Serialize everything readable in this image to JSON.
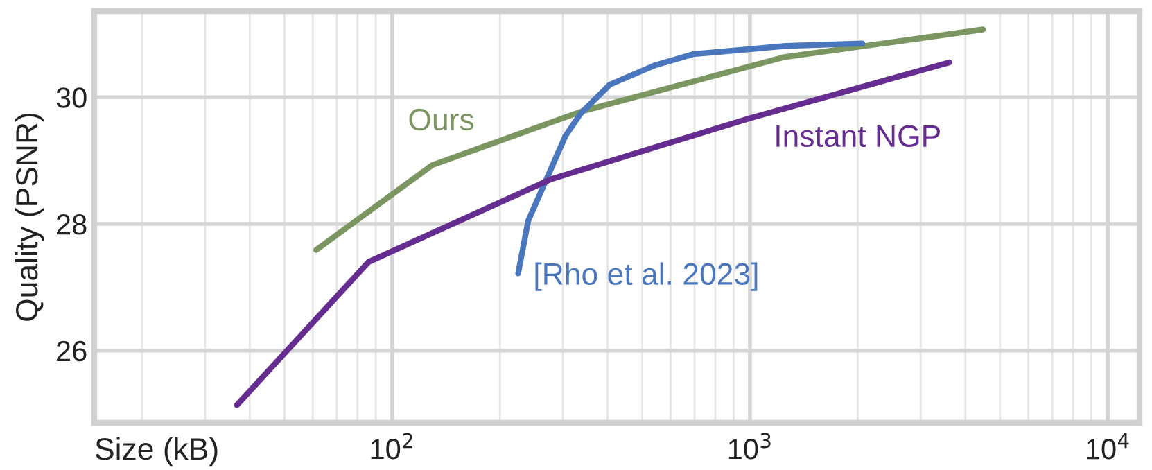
{
  "chart_data": {
    "type": "line",
    "xlabel": "Size (kB)",
    "ylabel": "Quality (PSNR)",
    "log": "x",
    "grid": true,
    "legend": false,
    "marker": "none",
    "line_style": "solid",
    "xlim": [
      14.7,
      12270
    ],
    "ylim": [
      24.86,
      31.36
    ],
    "xticks": [
      {
        "value": 100,
        "label": "10$^{2}$"
      },
      {
        "value": 1000,
        "label": "10$^{3}$"
      },
      {
        "value": 10000,
        "label": "10$^{4}$"
      }
    ],
    "yticks": [
      26,
      28,
      30
    ],
    "series": [
      {
        "name": "Ours",
        "color": "#7b9660",
        "x": [
          61.3,
          129.5,
          340,
          1239,
          4480
        ],
        "values": [
          27.59,
          28.93,
          29.78,
          30.63,
          31.07
        ]
      },
      {
        "name": "[Rho et al. 2023]",
        "color": "#4a76bd",
        "x": [
          225,
          240,
          305,
          336,
          406,
          540,
          693,
          1259,
          2060
        ],
        "values": [
          27.22,
          28.05,
          29.39,
          29.74,
          30.2,
          30.5,
          30.68,
          30.81,
          30.85
        ]
      },
      {
        "name": "Instant NGP",
        "color": "#662d91",
        "x": [
          36.8,
          85.9,
          279,
          1000,
          3610
        ],
        "values": [
          25.14,
          27.4,
          28.71,
          29.67,
          30.55
        ]
      }
    ]
  }
}
